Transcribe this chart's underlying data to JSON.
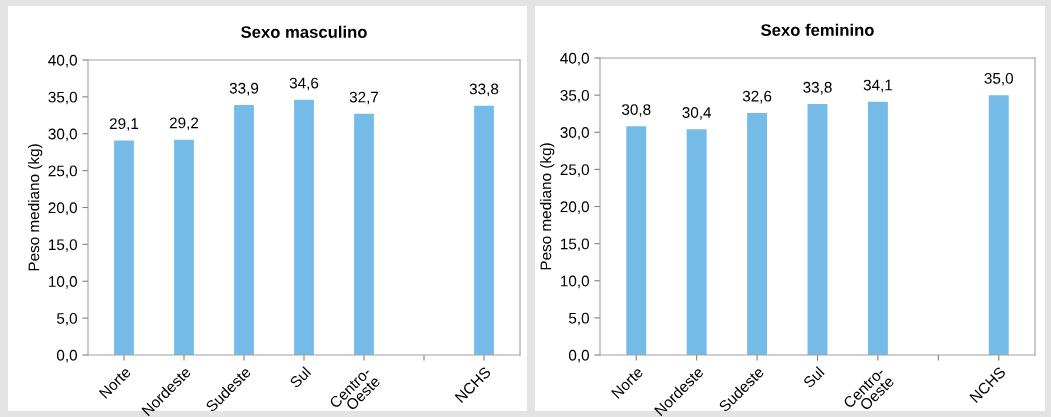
{
  "chart_data": [
    {
      "type": "bar",
      "title": "Sexo masculino",
      "ylabel": "Peso mediano (kg)",
      "categories": [
        "Norte",
        "Nordeste",
        "Sudeste",
        "Sul",
        "Centro-\nOeste",
        null,
        "NCHS"
      ],
      "values": [
        29.1,
        29.2,
        33.9,
        34.6,
        32.7,
        null,
        33.8
      ],
      "value_labels": [
        "29,1",
        "29,2",
        "33,9",
        "34,6",
        "32,7",
        null,
        "33,8"
      ],
      "color": "#74bbe7",
      "ylim": [
        0,
        40
      ],
      "yticks": [
        {
          "value": 0,
          "label": "0,0"
        },
        {
          "value": 5,
          "label": "5,0"
        },
        {
          "value": 10,
          "label": "10,0"
        },
        {
          "value": 15,
          "label": "15,0"
        },
        {
          "value": 20,
          "label": "20,0"
        },
        {
          "value": 25,
          "label": "25,0"
        },
        {
          "value": 30,
          "label": "30,0"
        },
        {
          "value": 35,
          "label": "35,0"
        },
        {
          "value": 40,
          "label": "40,0"
        }
      ]
    },
    {
      "type": "bar",
      "title": "Sexo feminino",
      "ylabel": "Peso mediano (kg)",
      "categories": [
        "Norte",
        "Nordeste",
        "Sudeste",
        "Sul",
        "Centro-\nOeste",
        null,
        "NCHS"
      ],
      "values": [
        30.8,
        30.4,
        32.6,
        33.8,
        34.1,
        null,
        35.0
      ],
      "value_labels": [
        "30,8",
        "30,4",
        "32,6",
        "33,8",
        "34,1",
        null,
        "35,0"
      ],
      "color": "#74bbe7",
      "ylim": [
        0,
        40
      ],
      "yticks": [
        {
          "value": 0,
          "label": "0,0"
        },
        {
          "value": 5,
          "label": "5,0"
        },
        {
          "value": 10,
          "label": "10,0"
        },
        {
          "value": 15,
          "label": "15,0"
        },
        {
          "value": 20,
          "label": "20,0"
        },
        {
          "value": 25,
          "label": "25,0"
        },
        {
          "value": 30,
          "label": "30,0"
        },
        {
          "value": 35,
          "label": "35,0"
        },
        {
          "value": 40,
          "label": "40,0"
        }
      ]
    }
  ]
}
